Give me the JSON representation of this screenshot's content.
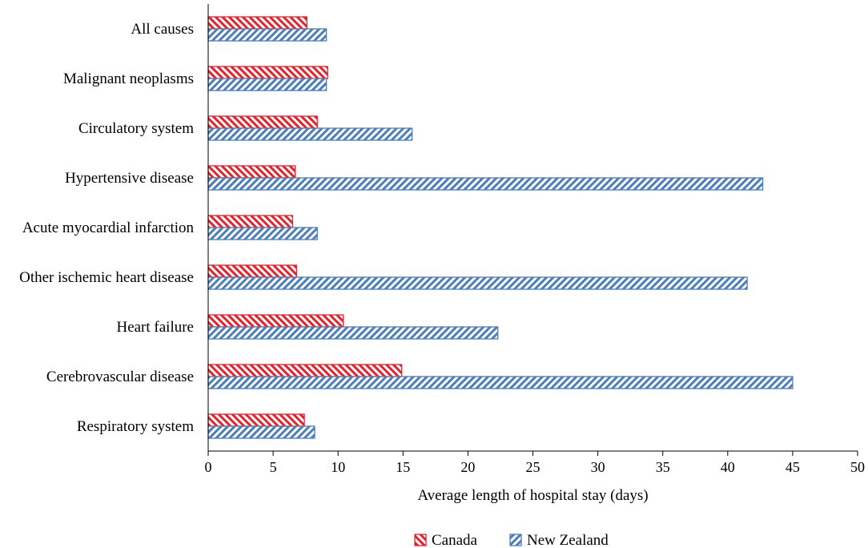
{
  "chart_data": {
    "type": "bar",
    "orientation": "horizontal",
    "title": "",
    "xlabel": "Average length of hospital stay (days)",
    "ylabel": "",
    "xlim": [
      0,
      50
    ],
    "xticks": [
      0,
      5,
      10,
      15,
      20,
      25,
      30,
      35,
      40,
      45,
      50
    ],
    "grid": false,
    "legend_position": "bottom",
    "categories": [
      "All causes",
      "Malignant neoplasms",
      "Circulatory system",
      "Hypertensive disease",
      "Acute myocardial infarction",
      "Other ischemic heart disease",
      "Heart failure",
      "Cerebrovascular disease",
      "Respiratory system"
    ],
    "series": [
      {
        "name": "Canada",
        "color": "#e8202a",
        "pattern": "diagonal-hatch-down",
        "values": [
          7.6,
          9.2,
          8.4,
          6.7,
          6.5,
          6.8,
          10.4,
          14.9,
          7.4
        ]
      },
      {
        "name": "New Zealand",
        "color": "#4a7dbf",
        "pattern": "diagonal-hatch-up",
        "values": [
          9.1,
          9.1,
          15.7,
          42.7,
          8.4,
          41.5,
          22.3,
          45.0,
          8.2
        ]
      }
    ]
  }
}
